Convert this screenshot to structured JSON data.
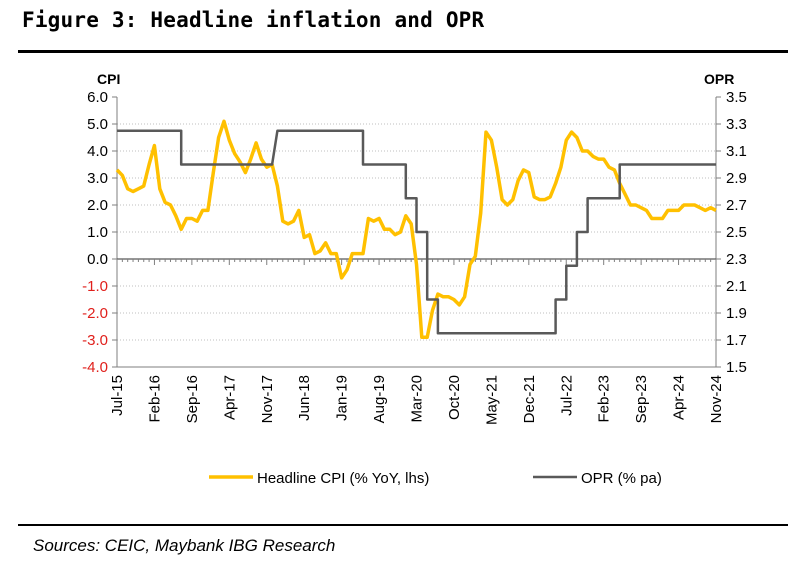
{
  "page": {
    "title": "Figure 3: Headline inflation and OPR",
    "source": "Sources: CEIC, Maybank IBG Research"
  },
  "colors": {
    "cpi": "#ffc000",
    "opr": "#595959",
    "negative_tick": "#e0201c",
    "grid": "#bfbfbf"
  },
  "chart_data": {
    "type": "line",
    "title": "Figure 3: Headline inflation and OPR",
    "left_axis": {
      "label": "CPI",
      "range": [
        -4.0,
        6.0
      ],
      "ticks": [
        "6.0",
        "5.0",
        "4.0",
        "3.0",
        "2.0",
        "1.0",
        "0.0",
        "-1.0",
        "-2.0",
        "-3.0",
        "-4.0"
      ]
    },
    "right_axis": {
      "label": "OPR",
      "range": [
        1.5,
        3.5
      ],
      "ticks": [
        "3.5",
        "3.3",
        "3.1",
        "2.9",
        "2.7",
        "2.5",
        "2.3",
        "2.1",
        "1.9",
        "1.7",
        "1.5"
      ]
    },
    "x_axis": {
      "start": "2015-07",
      "end": "2024-11",
      "ticks": [
        "Jul-15",
        "Feb-16",
        "Sep-16",
        "Apr-17",
        "Nov-17",
        "Jun-18",
        "Jan-19",
        "Aug-19",
        "Mar-20",
        "Oct-20",
        "May-21",
        "Dec-21",
        "Jul-22",
        "Feb-23",
        "Sep-23",
        "Apr-24",
        "Nov-24"
      ]
    },
    "grid": "horizontal dotted",
    "legend_position": "bottom",
    "series": [
      {
        "name": "Headline CPI (% YoY, lhs)",
        "axis": "left",
        "points": [
          [
            "2015-07",
            3.3
          ],
          [
            "2015-08",
            3.1
          ],
          [
            "2015-09",
            2.6
          ],
          [
            "2015-10",
            2.5
          ],
          [
            "2015-11",
            2.6
          ],
          [
            "2015-12",
            2.7
          ],
          [
            "2016-01",
            3.5
          ],
          [
            "2016-02",
            4.2
          ],
          [
            "2016-03",
            2.6
          ],
          [
            "2016-04",
            2.1
          ],
          [
            "2016-05",
            2.0
          ],
          [
            "2016-06",
            1.6
          ],
          [
            "2016-07",
            1.1
          ],
          [
            "2016-08",
            1.5
          ],
          [
            "2016-09",
            1.5
          ],
          [
            "2016-10",
            1.4
          ],
          [
            "2016-11",
            1.8
          ],
          [
            "2016-12",
            1.8
          ],
          [
            "2017-01",
            3.2
          ],
          [
            "2017-02",
            4.5
          ],
          [
            "2017-03",
            5.1
          ],
          [
            "2017-04",
            4.4
          ],
          [
            "2017-05",
            3.9
          ],
          [
            "2017-06",
            3.6
          ],
          [
            "2017-07",
            3.2
          ],
          [
            "2017-08",
            3.7
          ],
          [
            "2017-09",
            4.3
          ],
          [
            "2017-10",
            3.7
          ],
          [
            "2017-11",
            3.4
          ],
          [
            "2017-12",
            3.5
          ],
          [
            "2018-01",
            2.7
          ],
          [
            "2018-02",
            1.4
          ],
          [
            "2018-03",
            1.3
          ],
          [
            "2018-04",
            1.4
          ],
          [
            "2018-05",
            1.8
          ],
          [
            "2018-06",
            0.8
          ],
          [
            "2018-07",
            0.9
          ],
          [
            "2018-08",
            0.2
          ],
          [
            "2018-09",
            0.3
          ],
          [
            "2018-10",
            0.6
          ],
          [
            "2018-11",
            0.2
          ],
          [
            "2018-12",
            0.2
          ],
          [
            "2019-01",
            -0.7
          ],
          [
            "2019-02",
            -0.4
          ],
          [
            "2019-03",
            0.2
          ],
          [
            "2019-04",
            0.2
          ],
          [
            "2019-05",
            0.2
          ],
          [
            "2019-06",
            1.5
          ],
          [
            "2019-07",
            1.4
          ],
          [
            "2019-08",
            1.5
          ],
          [
            "2019-09",
            1.1
          ],
          [
            "2019-10",
            1.1
          ],
          [
            "2019-11",
            0.9
          ],
          [
            "2019-12",
            1.0
          ],
          [
            "2020-01",
            1.6
          ],
          [
            "2020-02",
            1.3
          ],
          [
            "2020-03",
            -0.2
          ],
          [
            "2020-04",
            -2.9
          ],
          [
            "2020-05",
            -2.9
          ],
          [
            "2020-06",
            -1.9
          ],
          [
            "2020-07",
            -1.3
          ],
          [
            "2020-08",
            -1.4
          ],
          [
            "2020-09",
            -1.4
          ],
          [
            "2020-10",
            -1.5
          ],
          [
            "2020-11",
            -1.7
          ],
          [
            "2020-12",
            -1.4
          ],
          [
            "2021-01",
            -0.2
          ],
          [
            "2021-02",
            0.1
          ],
          [
            "2021-03",
            1.7
          ],
          [
            "2021-04",
            4.7
          ],
          [
            "2021-05",
            4.4
          ],
          [
            "2021-06",
            3.4
          ],
          [
            "2021-07",
            2.2
          ],
          [
            "2021-08",
            2.0
          ],
          [
            "2021-09",
            2.2
          ],
          [
            "2021-10",
            2.9
          ],
          [
            "2021-11",
            3.3
          ],
          [
            "2021-12",
            3.2
          ],
          [
            "2022-01",
            2.3
          ],
          [
            "2022-02",
            2.2
          ],
          [
            "2022-03",
            2.2
          ],
          [
            "2022-04",
            2.3
          ],
          [
            "2022-05",
            2.8
          ],
          [
            "2022-06",
            3.4
          ],
          [
            "2022-07",
            4.4
          ],
          [
            "2022-08",
            4.7
          ],
          [
            "2022-09",
            4.5
          ],
          [
            "2022-10",
            4.0
          ],
          [
            "2022-11",
            4.0
          ],
          [
            "2022-12",
            3.8
          ],
          [
            "2023-01",
            3.7
          ],
          [
            "2023-02",
            3.7
          ],
          [
            "2023-03",
            3.4
          ],
          [
            "2023-04",
            3.3
          ],
          [
            "2023-05",
            2.8
          ],
          [
            "2023-06",
            2.4
          ],
          [
            "2023-07",
            2.0
          ],
          [
            "2023-08",
            2.0
          ],
          [
            "2023-09",
            1.9
          ],
          [
            "2023-10",
            1.8
          ],
          [
            "2023-11",
            1.5
          ],
          [
            "2023-12",
            1.5
          ],
          [
            "2024-01",
            1.5
          ],
          [
            "2024-02",
            1.8
          ],
          [
            "2024-03",
            1.8
          ],
          [
            "2024-04",
            1.8
          ],
          [
            "2024-05",
            2.0
          ],
          [
            "2024-06",
            2.0
          ],
          [
            "2024-07",
            2.0
          ],
          [
            "2024-08",
            1.9
          ],
          [
            "2024-09",
            1.8
          ],
          [
            "2024-10",
            1.9
          ],
          [
            "2024-11",
            1.8
          ]
        ]
      },
      {
        "name": "OPR (% pa)",
        "axis": "right",
        "points": [
          [
            "2015-07",
            3.25
          ],
          [
            "2016-07",
            3.25
          ],
          [
            "2016-07",
            3.0
          ],
          [
            "2017-12",
            3.0
          ],
          [
            "2018-01",
            3.25
          ],
          [
            "2019-05",
            3.25
          ],
          [
            "2019-05",
            3.0
          ],
          [
            "2020-01",
            3.0
          ],
          [
            "2020-01",
            2.75
          ],
          [
            "2020-03",
            2.75
          ],
          [
            "2020-03",
            2.5
          ],
          [
            "2020-05",
            2.5
          ],
          [
            "2020-05",
            2.0
          ],
          [
            "2020-07",
            2.0
          ],
          [
            "2020-07",
            1.75
          ],
          [
            "2022-05",
            1.75
          ],
          [
            "2022-05",
            2.0
          ],
          [
            "2022-07",
            2.0
          ],
          [
            "2022-07",
            2.25
          ],
          [
            "2022-09",
            2.25
          ],
          [
            "2022-09",
            2.5
          ],
          [
            "2022-11",
            2.5
          ],
          [
            "2022-11",
            2.75
          ],
          [
            "2023-05",
            2.75
          ],
          [
            "2023-05",
            3.0
          ],
          [
            "2024-11",
            3.0
          ]
        ]
      }
    ]
  }
}
